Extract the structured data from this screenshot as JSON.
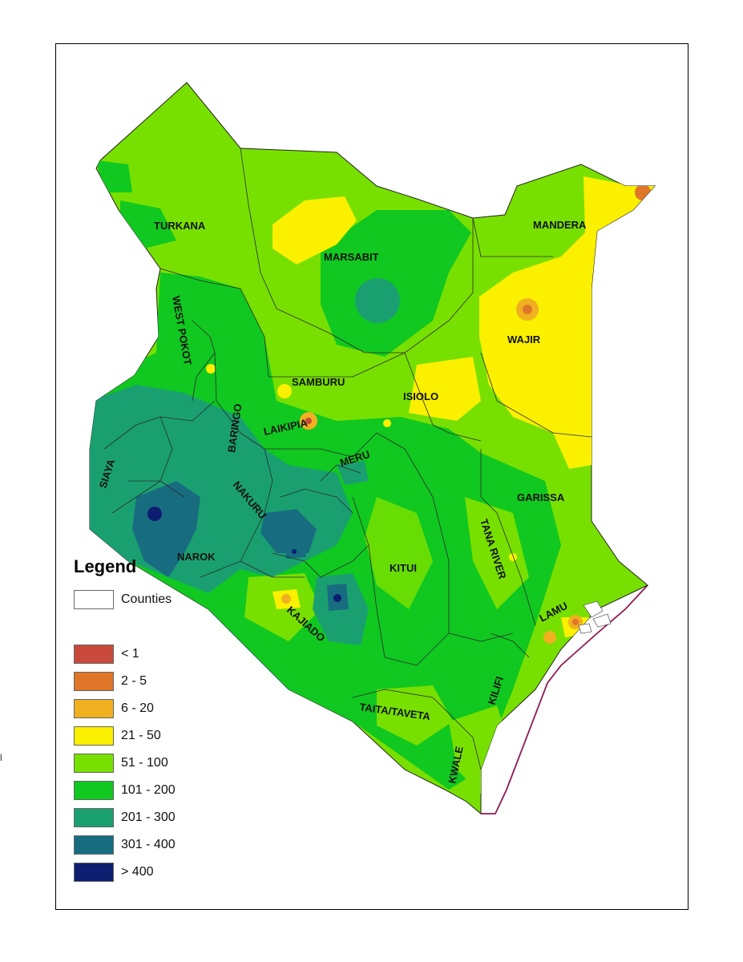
{
  "legend": {
    "title": "Legend",
    "counties_label": "Counties",
    "classes": [
      {
        "label": "< 1",
        "color": "#c94a3a"
      },
      {
        "label": "2 - 5",
        "color": "#e07628"
      },
      {
        "label": "6 - 20",
        "color": "#f0b020"
      },
      {
        "label": "21 - 50",
        "color": "#faf000"
      },
      {
        "label": "51 - 100",
        "color": "#78e000"
      },
      {
        "label": "101 - 200",
        "color": "#10c820"
      },
      {
        "label": "201 - 300",
        "color": "#1aa070"
      },
      {
        "label": "301 - 400",
        "color": "#186c80"
      },
      {
        "label": "> 400",
        "color": "#0c1e70"
      }
    ]
  },
  "counties": {
    "turkana": "TURKANA",
    "marsabit": "MARSABIT",
    "mandera": "MANDERA",
    "west_pokot": "WEST POKOT",
    "wajir": "WAJIR",
    "samburu": "SAMBURU",
    "isiolo": "ISIOLO",
    "baringo": "BARINGO",
    "laikipia": "LAIKIPIA",
    "meru": "MERU",
    "siaya": "SIAYA",
    "nakuru": "NAKURU",
    "garissa": "GARISSA",
    "narok": "NAROK",
    "tana_river": "TANA RIVER",
    "kitui": "KITUI",
    "lamu": "LAMU",
    "kajiado": "KAJIADO",
    "kilifi": "KILIFI",
    "taita_taveta": "TAITA/TAVETA",
    "kwale": "KWALE"
  },
  "edge_mark": "l"
}
